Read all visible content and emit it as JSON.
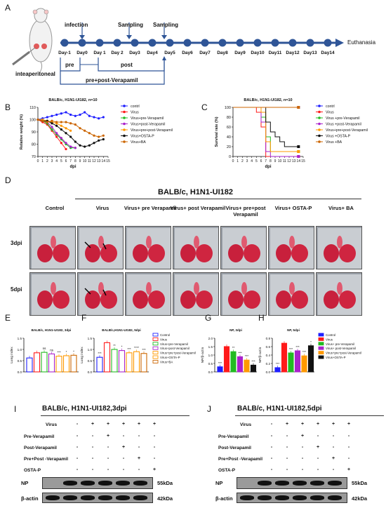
{
  "panels": {
    "A": {
      "letter": "A",
      "route_label": "inteaperitoneal",
      "events": [
        "infection",
        "Sampling",
        "Sampling"
      ],
      "days": [
        "Day-1",
        "Day0",
        "Day 1",
        "Day 2",
        "Day3",
        "Day4",
        "Day5",
        "Day6",
        "Day7",
        "Day8",
        "Day9",
        "Day10",
        "Day11",
        "Day12",
        "Day13",
        "Day14"
      ],
      "end_label": "Euthanasia",
      "pre_label": "pre",
      "post_label": "post",
      "prepost_label": "pre+post-Verapamil"
    },
    "B": {
      "letter": "B"
    },
    "C": {
      "letter": "C"
    },
    "D": {
      "letter": "D",
      "title": "BALB/c, H1N1-UI182",
      "columns": [
        "Control",
        "Virus",
        "Virus+ pre Verapamil",
        "Virus+ post Verapamil",
        "Virus+ pre+post Verapamil",
        "Virus+ OSTA-P",
        "Virus+ BA"
      ],
      "rows": [
        "3dpi",
        "5dpi"
      ]
    },
    "E": {
      "letter": "E"
    },
    "F": {
      "letter": "F"
    },
    "G": {
      "letter": "G"
    },
    "H": {
      "letter": "H"
    },
    "I": {
      "letter": "I",
      "title": "BALB/c, H1N1-UI182,3dpi",
      "row_labels": [
        "Virus",
        "Pre-Verapamil",
        "Post-Verapamil",
        "Pre+Post -Verapamil",
        "OSTA-P"
      ],
      "symbols": [
        [
          "-",
          "+",
          "+",
          "+",
          "+",
          "+"
        ],
        [
          "-",
          "-",
          "+",
          "-",
          "-",
          "-"
        ],
        [
          "-",
          "-",
          "-",
          "+",
          "-",
          "-"
        ],
        [
          "-",
          "-",
          "-",
          "-",
          "+",
          "-"
        ],
        [
          "-",
          "-",
          "-",
          "-",
          "-",
          "+"
        ]
      ],
      "blot_labels": [
        "NP",
        "β-actin"
      ],
      "sizes": [
        "55kDa",
        "42kDa"
      ]
    },
    "J": {
      "letter": "J",
      "title": "BALB/c, H1N1-UI182,5dpi",
      "row_labels": [
        "Virus",
        "Pre-Verapamil",
        "Post-Verapamil",
        "Pre+Post -Verapamil",
        "OSTA-P"
      ],
      "symbols": [
        [
          "-",
          "+",
          "+",
          "+",
          "+",
          "+"
        ],
        [
          "-",
          "-",
          "+",
          "-",
          "-",
          "-"
        ],
        [
          "-",
          "-",
          "-",
          "+",
          "-",
          "-"
        ],
        [
          "-",
          "-",
          "-",
          "-",
          "+",
          "-"
        ],
        [
          "-",
          "-",
          "-",
          "-",
          "-",
          "+"
        ]
      ],
      "blot_labels": [
        "NP",
        "β-actin"
      ],
      "sizes": [
        "55kDa",
        "42kDa"
      ]
    }
  },
  "colors": {
    "timeline": "#2f5597",
    "control": "#1f1fff",
    "virus": "#ff1a1a",
    "pre": "#22bb22",
    "post": "#aa22cc",
    "prepost": "#ff9900",
    "ostap": "#111111",
    "ba": "#cc6600"
  },
  "chart_data": [
    {
      "id": "B",
      "type": "line",
      "title": "BALB/c, H1N1-UI182, n=10",
      "xlabel": "dpi",
      "ylabel": "Relative weight (%)",
      "x": [
        0,
        1,
        2,
        3,
        4,
        5,
        6,
        7,
        8,
        9,
        10,
        11,
        12,
        13,
        14
      ],
      "xlim": [
        0,
        15
      ],
      "ylim": [
        70,
        110
      ],
      "yticks": [
        70,
        80,
        90,
        100,
        110
      ],
      "xticks": [
        0,
        1,
        2,
        3,
        4,
        5,
        6,
        7,
        8,
        9,
        10,
        11,
        12,
        13,
        14,
        15
      ],
      "legend_position": "right",
      "series": [
        {
          "name": "contrl",
          "color": "#1f1fff",
          "marker": "circle",
          "values": [
            100,
            101,
            102,
            103,
            104,
            105,
            106,
            104,
            103,
            104,
            106,
            103,
            102,
            101,
            102
          ]
        },
        {
          "name": "Virus",
          "color": "#ff1a1a",
          "marker": "circle",
          "values": [
            100,
            98,
            96,
            91,
            86,
            81,
            76,
            null,
            null,
            null,
            null,
            null,
            null,
            null,
            null
          ]
        },
        {
          "name": "Virus+pre-Verapamil",
          "color": "#22bb22",
          "marker": "circle",
          "values": [
            100,
            99,
            97,
            92,
            88,
            84,
            80,
            77,
            77,
            null,
            null,
            null,
            null,
            null,
            null
          ]
        },
        {
          "name": "Virus+post-Verapamil",
          "color": "#aa22cc",
          "marker": "circle",
          "values": [
            100,
            99,
            98,
            94,
            89,
            85,
            81,
            78,
            77,
            null,
            null,
            null,
            null,
            null,
            null
          ]
        },
        {
          "name": "Virus+pre+post-Verapamil",
          "color": "#ff9900",
          "marker": "diamond",
          "values": [
            100,
            100,
            99,
            98,
            97,
            95,
            93,
            91,
            null,
            null,
            null,
            null,
            null,
            null,
            null
          ]
        },
        {
          "name": "Virus+OSTA-P",
          "color": "#111111",
          "marker": "circle",
          "values": [
            100,
            99,
            99,
            97,
            95,
            92,
            89,
            86,
            82,
            79,
            78,
            79,
            81,
            83,
            84
          ]
        },
        {
          "name": "Virus+BA",
          "color": "#cc6600",
          "marker": "diamond",
          "values": [
            100,
            99,
            98,
            99,
            98,
            98,
            98,
            97,
            96,
            93,
            91,
            89,
            87,
            86,
            87
          ]
        }
      ]
    },
    {
      "id": "C",
      "type": "line",
      "title": "BALB/c, H1N1-UI182, n=10",
      "xlabel": "dpi",
      "ylabel": "Survival rate (%)",
      "x": [
        0,
        1,
        2,
        3,
        4,
        5,
        6,
        7,
        8,
        9,
        10,
        11,
        12,
        13,
        14
      ],
      "xlim": [
        0,
        15
      ],
      "ylim": [
        0,
        100
      ],
      "yticks": [
        0,
        20,
        40,
        60,
        80,
        100
      ],
      "xticks": [
        0,
        1,
        2,
        3,
        4,
        5,
        6,
        7,
        8,
        9,
        10,
        11,
        12,
        13,
        14,
        15
      ],
      "legend_position": "right",
      "series": [
        {
          "name": "contrl",
          "color": "#1f1fff",
          "values": [
            100,
            100,
            100,
            100,
            100,
            100,
            100,
            100,
            100,
            100,
            100,
            100,
            100,
            100,
            100
          ]
        },
        {
          "name": "Virus",
          "color": "#ff1a1a",
          "values": [
            100,
            100,
            100,
            100,
            100,
            90,
            60,
            0,
            0,
            0,
            0,
            0,
            0,
            0,
            0
          ]
        },
        {
          "name": "Virus +pre-Verapamil",
          "color": "#22bb22",
          "values": [
            100,
            100,
            100,
            100,
            100,
            100,
            80,
            40,
            10,
            10,
            10,
            10,
            10,
            10,
            10
          ]
        },
        {
          "name": "Virus +post-Verapamil",
          "color": "#aa22cc",
          "values": [
            100,
            100,
            100,
            100,
            100,
            100,
            70,
            10,
            0,
            0,
            0,
            0,
            0,
            0,
            0
          ]
        },
        {
          "name": "Virus+pre+post-Verapamil",
          "color": "#ff9900",
          "values": [
            100,
            100,
            100,
            100,
            100,
            100,
            90,
            30,
            10,
            10,
            10,
            10,
            10,
            10,
            10
          ]
        },
        {
          "name": "Virus +OSTA-P",
          "color": "#111111",
          "values": [
            100,
            100,
            100,
            100,
            100,
            100,
            100,
            70,
            50,
            40,
            30,
            20,
            20,
            20,
            20
          ]
        },
        {
          "name": "Virus +BA",
          "color": "#cc6600",
          "values": [
            100,
            100,
            100,
            100,
            100,
            100,
            100,
            100,
            100,
            100,
            100,
            100,
            100,
            100,
            100
          ]
        }
      ]
    },
    {
      "id": "E",
      "type": "bar",
      "title": "BALB/c, H1N1-UI182, 3dpi",
      "ylabel": "Lung index",
      "ylim": [
        0,
        1.5
      ],
      "yticks": [
        0.0,
        0.5,
        1.0,
        1.5
      ],
      "categories": [
        "Control",
        "Virus",
        "Virus+pre-Verapamil",
        "Virus+post-Verapamil",
        "Virus+pre+post-Verapamil",
        "Virus+OSTA-P",
        "Virus+BA"
      ],
      "values": [
        0.62,
        0.85,
        0.87,
        0.8,
        0.7,
        0.72,
        0.74
      ],
      "colors": [
        "#1f1fff",
        "#ff1a1a",
        "#22bb22",
        "#aa22cc",
        "#ff9900",
        "#ff9900",
        "#cc6600"
      ],
      "annotations": [
        "",
        "",
        "ns",
        "ns",
        "***",
        "*",
        "*"
      ]
    },
    {
      "id": "F",
      "type": "bar",
      "title": "BALB/c,H1N1-UI182, 5dpi",
      "ylabel": "Lung index",
      "ylim": [
        0,
        1.5
      ],
      "yticks": [
        0.0,
        0.5,
        1.0,
        1.5
      ],
      "categories": [
        "Control",
        "Virus",
        "Virus+pre-Verapamil",
        "Virus+post-Verapamil",
        "Virus+pre+post-Verapamil",
        "Virus+OSTA-P",
        "Virus+BA"
      ],
      "values": [
        0.65,
        1.3,
        1.0,
        0.95,
        0.85,
        0.9,
        0.82
      ],
      "colors": [
        "#1f1fff",
        "#ff1a1a",
        "#22bb22",
        "#aa22cc",
        "#ff9900",
        "#ff9900",
        "#cc6600"
      ],
      "annotations": [
        "***",
        "",
        "**",
        "*",
        "***",
        "****",
        "***"
      ],
      "legend": [
        "Control",
        "Virus",
        "Virus+pre-Verapamil",
        "Virus+post-Verapamil",
        "Virus+pre+post-Verapamil",
        "Virus+OSTA-P",
        "Virus+BA"
      ]
    },
    {
      "id": "G",
      "type": "bar",
      "title": "NP, 3dpi",
      "ylabel": "NP/β-actin",
      "ylim": [
        0,
        2.0
      ],
      "yticks": [
        0.0,
        0.5,
        1.0,
        1.5,
        2.0
      ],
      "categories": [
        "Control",
        "Virus",
        "Virus+ pre-Verapamil",
        "Virus+ post-Verapamil",
        "Virus+pre+post-Verapamil",
        "Virus+OSTA-P"
      ],
      "values": [
        0.3,
        1.5,
        1.2,
        0.9,
        0.7,
        0.4
      ],
      "colors": [
        "#1f1fff",
        "#ff1a1a",
        "#22bb22",
        "#aa22cc",
        "#ff9900",
        "#111111"
      ],
      "annotations": [
        "***",
        "",
        "**",
        "***",
        "***",
        "***"
      ]
    },
    {
      "id": "H",
      "type": "bar",
      "title": "NP, 5dpi",
      "ylabel": "NP/β-actin",
      "ylim": [
        0,
        0.8
      ],
      "yticks": [
        0.0,
        0.2,
        0.4,
        0.6,
        0.8
      ],
      "categories": [
        "Control",
        "Virus",
        "Virus+ pre-Verapamil",
        "Virus+ post-Verapamil",
        "Virus+pre+post-Verapamil",
        "Virus+OSTA-P"
      ],
      "values": [
        0.1,
        0.68,
        0.45,
        0.5,
        0.38,
        0.62
      ],
      "colors": [
        "#1f1fff",
        "#ff1a1a",
        "#22bb22",
        "#aa22cc",
        "#ff9900",
        "#111111"
      ],
      "annotations": [
        "***",
        "",
        "***",
        "***",
        "***",
        "*"
      ],
      "legend": [
        "Control",
        "Virus",
        "Virus+ pre-Verapamil",
        "Virus+ post-Verapamil",
        "Virus+pre+post-Verapamil",
        "Virus+OSTA-P"
      ]
    }
  ]
}
